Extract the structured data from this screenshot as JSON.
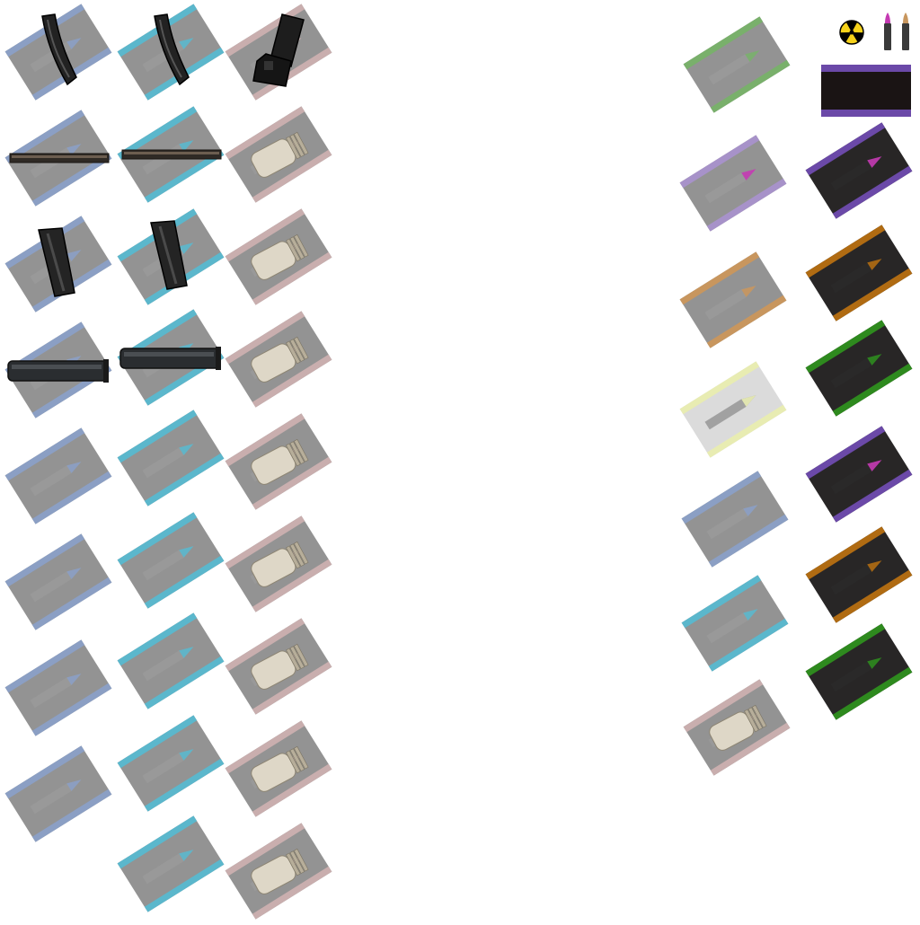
{
  "sprite_sheet": {
    "palette": {
      "blue": "#8b9fc4",
      "cyan": "#5bb7cc",
      "tan": "#c9aeae",
      "green": "#79b06b",
      "lavender": "#a792c9",
      "purple": "#6b49a8",
      "orange": "#c8965e",
      "brown": "#b06b12",
      "pale": "#e8ecb2",
      "darkgreen": "#2e8a1e",
      "grey": "#8d8d8d",
      "black": "#1c1a1a",
      "magenta": "#c43ab2",
      "shell": "#ded7c7",
      "radiation": "#f6d21a"
    },
    "tiles": [
      {
        "name": "ammo-tile-blue-curved-mag",
        "bg": "grey",
        "stripe": "blue",
        "tip": "blue",
        "overlay": "curved-mag-icon"
      },
      {
        "name": "ammo-tile-cyan-curved-mag",
        "bg": "grey",
        "stripe": "cyan",
        "tip": "cyan",
        "overlay": "curved-mag-icon"
      },
      {
        "name": "ammo-tile-tan-box-mag",
        "bg": "grey",
        "stripe": "tan",
        "tip": "tan",
        "overlay": "box-mag-icon"
      },
      {
        "name": "ammo-tile-blue-flat-mag",
        "bg": "grey",
        "stripe": "blue",
        "tip": "blue",
        "overlay": "flat-mag-icon"
      },
      {
        "name": "ammo-tile-cyan-flat-mag",
        "bg": "grey",
        "stripe": "cyan",
        "tip": "cyan",
        "overlay": "flat-mag-icon"
      },
      {
        "name": "ammo-tile-tan-shell",
        "bg": "grey",
        "stripe": "tan",
        "tip": "tan",
        "overlay": "shell-icon"
      },
      {
        "name": "ammo-tile-blue-straight-mag",
        "bg": "grey",
        "stripe": "blue",
        "tip": "blue",
        "overlay": "straight-mag-icon"
      },
      {
        "name": "ammo-tile-cyan-straight-mag",
        "bg": "grey",
        "stripe": "cyan",
        "tip": "cyan",
        "overlay": "straight-mag-icon"
      },
      {
        "name": "ammo-tile-tan-shell",
        "bg": "grey",
        "stripe": "tan",
        "tip": "tan",
        "overlay": "shell-icon"
      },
      {
        "name": "ammo-tile-blue-tube-mag",
        "bg": "grey",
        "stripe": "blue",
        "tip": "blue",
        "overlay": "tube-mag-icon"
      },
      {
        "name": "ammo-tile-cyan-tube-mag",
        "bg": "grey",
        "stripe": "cyan",
        "tip": "cyan",
        "overlay": "tube-mag-icon"
      },
      {
        "name": "ammo-tile-tan-shell",
        "bg": "grey",
        "stripe": "tan",
        "tip": "tan",
        "overlay": "shell-icon"
      },
      {
        "name": "ammo-tile-blue",
        "bg": "grey",
        "stripe": "blue",
        "tip": "blue",
        "overlay": "none"
      },
      {
        "name": "ammo-tile-cyan",
        "bg": "grey",
        "stripe": "cyan",
        "tip": "cyan",
        "overlay": "none"
      },
      {
        "name": "ammo-tile-tan-shell",
        "bg": "grey",
        "stripe": "tan",
        "tip": "tan",
        "overlay": "shell-icon"
      },
      {
        "name": "ammo-tile-blue",
        "bg": "grey",
        "stripe": "blue",
        "tip": "blue",
        "overlay": "none"
      },
      {
        "name": "ammo-tile-cyan",
        "bg": "grey",
        "stripe": "cyan",
        "tip": "cyan",
        "overlay": "none"
      },
      {
        "name": "ammo-tile-tan-shell",
        "bg": "grey",
        "stripe": "tan",
        "tip": "tan",
        "overlay": "shell-icon"
      },
      {
        "name": "ammo-tile-blue",
        "bg": "grey",
        "stripe": "blue",
        "tip": "blue",
        "overlay": "none"
      },
      {
        "name": "ammo-tile-cyan",
        "bg": "grey",
        "stripe": "cyan",
        "tip": "cyan",
        "overlay": "none"
      },
      {
        "name": "ammo-tile-tan-shell",
        "bg": "grey",
        "stripe": "tan",
        "tip": "tan",
        "overlay": "shell-icon"
      },
      {
        "name": "ammo-tile-blue",
        "bg": "grey",
        "stripe": "blue",
        "tip": "blue",
        "overlay": "none"
      },
      {
        "name": "ammo-tile-cyan",
        "bg": "grey",
        "stripe": "cyan",
        "tip": "cyan",
        "overlay": "none"
      },
      {
        "name": "ammo-tile-tan-shell",
        "bg": "grey",
        "stripe": "tan",
        "tip": "tan",
        "overlay": "shell-icon"
      },
      {
        "name": "ammo-tile-cyan",
        "bg": "grey",
        "stripe": "cyan",
        "tip": "cyan",
        "overlay": "none"
      },
      {
        "name": "ammo-tile-tan-shell",
        "bg": "grey",
        "stripe": "tan",
        "tip": "tan",
        "overlay": "shell-icon"
      },
      {
        "name": "ammo-tile-green",
        "bg": "grey",
        "stripe": "green",
        "tip": "green",
        "overlay": "none"
      },
      {
        "name": "ammo-tile-lavender",
        "bg": "grey",
        "stripe": "lavender",
        "tip": "magenta",
        "overlay": "none"
      },
      {
        "name": "ammo-tile-dark-purple",
        "bg": "black",
        "stripe": "purple",
        "tip": "magenta",
        "overlay": "none"
      },
      {
        "name": "ammo-tile-orange",
        "bg": "grey",
        "stripe": "orange",
        "tip": "orange",
        "overlay": "none"
      },
      {
        "name": "ammo-tile-dark-brown",
        "bg": "black",
        "stripe": "brown",
        "tip": "brown",
        "overlay": "none"
      },
      {
        "name": "ammo-tile-pale",
        "bg": "pale-bg",
        "stripe": "pale",
        "tip": "pale",
        "overlay": "none"
      },
      {
        "name": "ammo-tile-dark-green",
        "bg": "black",
        "stripe": "darkgreen",
        "tip": "darkgreen",
        "overlay": "none"
      },
      {
        "name": "ammo-tile-blue",
        "bg": "grey",
        "stripe": "blue",
        "tip": "blue",
        "overlay": "none"
      },
      {
        "name": "ammo-tile-dark-purple",
        "bg": "black",
        "stripe": "purple",
        "tip": "magenta",
        "overlay": "none"
      },
      {
        "name": "ammo-tile-cyan",
        "bg": "grey",
        "stripe": "cyan",
        "tip": "cyan",
        "overlay": "none"
      },
      {
        "name": "ammo-tile-dark-brown",
        "bg": "black",
        "stripe": "brown",
        "tip": "brown",
        "overlay": "none"
      },
      {
        "name": "ammo-tile-tan-shell",
        "bg": "grey",
        "stripe": "tan",
        "tip": "tan",
        "overlay": "shell-icon"
      },
      {
        "name": "ammo-tile-dark-green",
        "bg": "black",
        "stripe": "darkgreen",
        "tip": "darkgreen",
        "overlay": "none"
      }
    ],
    "extras": [
      {
        "name": "radiation-icon",
        "kind": "radiation"
      },
      {
        "name": "bullet-purple-tip-icon",
        "kind": "bullet",
        "tip": "magenta"
      },
      {
        "name": "bullet-brass-tip-icon",
        "kind": "bullet",
        "tip": "orange"
      },
      {
        "name": "dark-banner-purple-stripes",
        "kind": "banner",
        "stripe": "purple"
      }
    ]
  }
}
